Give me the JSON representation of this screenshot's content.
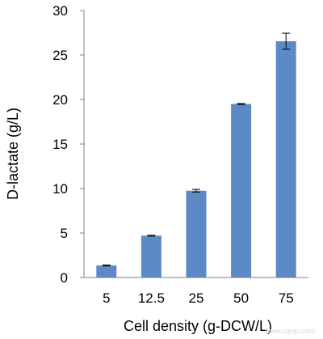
{
  "chart_data": {
    "type": "bar",
    "categories": [
      "5",
      "12.5",
      "25",
      "50",
      "75"
    ],
    "values": [
      1.35,
      4.7,
      9.75,
      19.5,
      26.55
    ],
    "errors": [
      0.05,
      0.05,
      0.15,
      0.05,
      0.9
    ],
    "title": "",
    "xlabel": "Cell density (g-DCW/L)",
    "ylabel": "D-lactate (g/L)",
    "ylim": [
      0,
      30
    ],
    "yticks": [
      "0",
      "5",
      "10",
      "15",
      "20",
      "25",
      "30"
    ],
    "grid": false,
    "legend": "none",
    "bar_color": "#5b8ac6"
  },
  "watermark": "www.cqvip.com"
}
